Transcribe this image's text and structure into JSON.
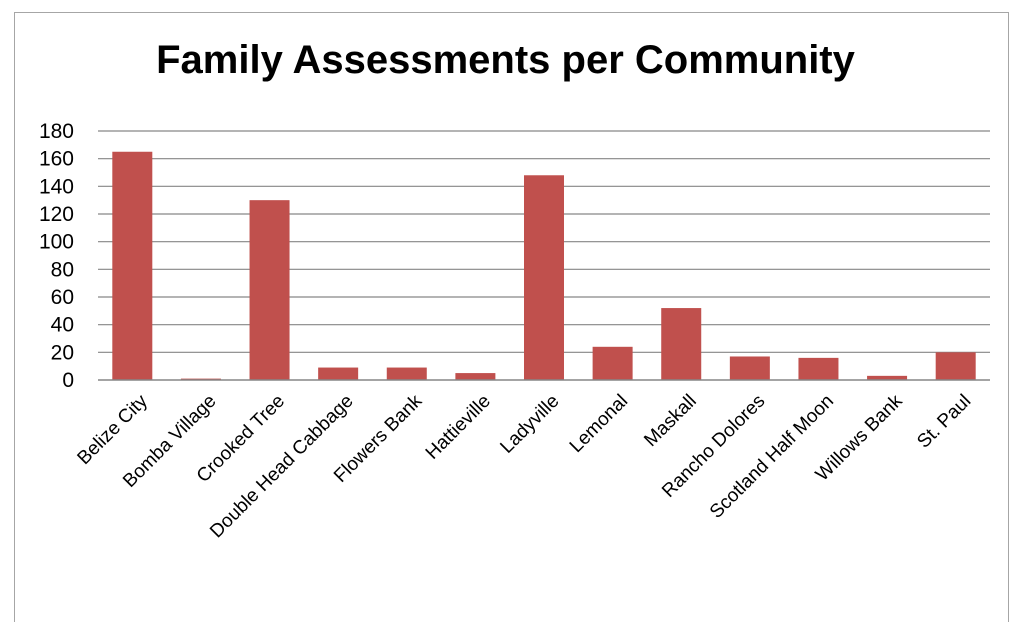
{
  "chart_data": {
    "type": "bar",
    "title": "Family Assessments per Community",
    "xlabel": "",
    "ylabel": "",
    "categories": [
      "Belize City",
      "Bomba Village",
      "Crooked Tree",
      "Double Head Cabbage",
      "Flowers Bank",
      "Hattieville",
      "Ladyville",
      "Lemonal",
      "Maskall",
      "Rancho Dolores",
      "Scotland Half Moon",
      "Willows Bank",
      "St. Paul"
    ],
    "values": [
      165,
      1,
      130,
      9,
      9,
      5,
      148,
      24,
      52,
      17,
      16,
      3,
      20
    ],
    "ylim": [
      0,
      180
    ],
    "yticks": [
      "0",
      "20",
      "40",
      "60",
      "80",
      "100",
      "120",
      "140",
      "160",
      "180"
    ],
    "grid": true,
    "legend": "none",
    "bar_color": "#c0504d",
    "grid_color": "#868686"
  }
}
